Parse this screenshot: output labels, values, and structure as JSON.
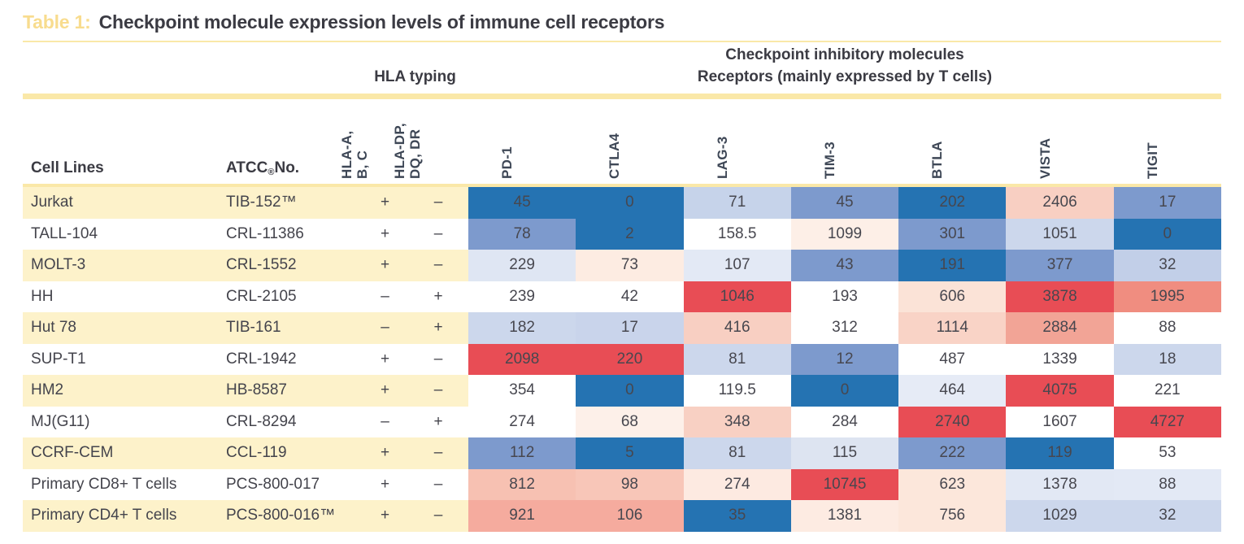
{
  "title": {
    "label": "Table 1:",
    "text": "Checkpoint molecule expression levels of immune cell receptors"
  },
  "group_headers": {
    "hla": "HLA typing",
    "checkpoint_line1": "Checkpoint inhibitory molecules",
    "checkpoint_line2": "Receptors (mainly expressed by T cells)"
  },
  "columns": {
    "cell_lines": "Cell Lines",
    "atcc_pre": "ATCC",
    "atcc_sup": "®",
    "atcc_post": " No.",
    "hla_abc_lines": [
      "HLA-A,",
      "B, C"
    ],
    "hla_dpdqdr_lines": [
      "HLA-DP,",
      "DQ, DR"
    ],
    "receptors": [
      "PD-1",
      "CTLA4",
      "LAG-3",
      "TIM-3",
      "BTLA",
      "VISTA",
      "TIGIT"
    ]
  },
  "palette": {
    "accent_yellow": "#fae8a8",
    "stripe_cream": "#fdf2ca",
    "title_label_yellow": "#f8dc8e",
    "heat_blue_dark": "#2573b2",
    "heat_blue_mid": "#7d9acd",
    "heat_blue_light": "#ccd7ec",
    "heat_red": "#e84d55",
    "heat_salmon": "#f5ab9e",
    "heat_pink": "#f8d0c3"
  },
  "rows": [
    {
      "cell_line": "Jurkat",
      "atcc": "TIB-152™",
      "hla_abc": "+",
      "hla_dpdqdr": "–",
      "row_tint": "cream",
      "values": [
        "45",
        "0",
        "71",
        "45",
        "202",
        "2406",
        "17"
      ],
      "cell_colors": [
        "#2573b2",
        "#2573b2",
        "#c6d3ea",
        "#7d9acd",
        "#2573b2",
        "#f8cfc2",
        "#7d9acd"
      ]
    },
    {
      "cell_line": "TALL-104",
      "atcc": "CRL-11386",
      "hla_abc": "+",
      "hla_dpdqdr": "–",
      "row_tint": "white",
      "values": [
        "78",
        "2",
        "158.5",
        "1099",
        "301",
        "1051",
        "0"
      ],
      "cell_colors": [
        "#7d9acd",
        "#2573b2",
        "#ffffff",
        "#fdefe7",
        "#7d9acd",
        "#ccd7ec",
        "#2573b2"
      ]
    },
    {
      "cell_line": "MOLT-3",
      "atcc": "CRL-1552",
      "hla_abc": "+",
      "hla_dpdqdr": "–",
      "row_tint": "cream",
      "values": [
        "229",
        "73",
        "107",
        "43",
        "191",
        "377",
        "32"
      ],
      "cell_colors": [
        "#dfe6f3",
        "#fdece2",
        "#e3e9f5",
        "#7d9acd",
        "#2573b2",
        "#7d9acd",
        "#c2cfe8"
      ]
    },
    {
      "cell_line": "HH",
      "atcc": "CRL-2105",
      "hla_abc": "–",
      "hla_dpdqdr": "+",
      "row_tint": "white",
      "values": [
        "239",
        "42",
        "1046",
        "193",
        "606",
        "3878",
        "1995"
      ],
      "cell_colors": [
        "#ffffff",
        "#ffffff",
        "#e84d55",
        "#ffffff",
        "#fbe3d7",
        "#e84d55",
        "#f08d80"
      ]
    },
    {
      "cell_line": "Hut 78",
      "atcc": "TIB-161",
      "hla_abc": "–",
      "hla_dpdqdr": "+",
      "row_tint": "cream",
      "values": [
        "182",
        "17",
        "416",
        "312",
        "1114",
        "2884",
        "88"
      ],
      "cell_colors": [
        "#ccd7ec",
        "#c9d4eb",
        "#f8cfc2",
        "#ffffff",
        "#f9d3c6",
        "#f2a496",
        "#ffffff"
      ]
    },
    {
      "cell_line": "SUP-T1",
      "atcc": "CRL-1942",
      "hla_abc": "+",
      "hla_dpdqdr": "–",
      "row_tint": "white",
      "values": [
        "2098",
        "220",
        "81",
        "12",
        "487",
        "1339",
        "18"
      ],
      "cell_colors": [
        "#e84d55",
        "#e84d55",
        "#ccd7ec",
        "#7d9acd",
        "#ffffff",
        "#ffffff",
        "#ccd7ec"
      ]
    },
    {
      "cell_line": "HM2",
      "atcc": "HB-8587",
      "hla_abc": "+",
      "hla_dpdqdr": "–",
      "row_tint": "cream",
      "values": [
        "354",
        "0",
        "119.5",
        "0",
        "464",
        "4075",
        "221"
      ],
      "cell_colors": [
        "#ffffff",
        "#2573b2",
        "#ffffff",
        "#2573b2",
        "#e6ebf6",
        "#e84d55",
        "#ffffff"
      ]
    },
    {
      "cell_line": "MJ(G11)",
      "atcc": "CRL-8294",
      "hla_abc": "–",
      "hla_dpdqdr": "+",
      "row_tint": "white",
      "values": [
        "274",
        "68",
        "348",
        "284",
        "2740",
        "1607",
        "4727"
      ],
      "cell_colors": [
        "#ffffff",
        "#fdf0e9",
        "#f8d0c3",
        "#ffffff",
        "#e84d55",
        "#ffffff",
        "#e84d55"
      ]
    },
    {
      "cell_line": "CCRF-CEM",
      "atcc": "CCL-119",
      "hla_abc": "+",
      "hla_dpdqdr": "–",
      "row_tint": "cream",
      "values": [
        "112",
        "5",
        "81",
        "115",
        "222",
        "119",
        "53"
      ],
      "cell_colors": [
        "#7d9acd",
        "#2573b2",
        "#ccd7ec",
        "#dde4f1",
        "#7d9acd",
        "#2573b2",
        "#ffffff"
      ]
    },
    {
      "cell_line": "Primary CD8+ T cells",
      "atcc": "PCS-800-017",
      "hla_abc": "+",
      "hla_dpdqdr": "–",
      "row_tint": "white",
      "values": [
        "812",
        "98",
        "274",
        "10745",
        "623",
        "1378",
        "88"
      ],
      "cell_colors": [
        "#f7c1b2",
        "#f8c6b8",
        "#fdeae1",
        "#e84d55",
        "#fce7db",
        "#e2e8f4",
        "#e3e9f5"
      ]
    },
    {
      "cell_line": "Primary CD4+ T cells",
      "atcc": "PCS-800-016™",
      "hla_abc": "+",
      "hla_dpdqdr": "–",
      "row_tint": "cream",
      "values": [
        "921",
        "106",
        "35",
        "1381",
        "756",
        "1029",
        "32"
      ],
      "cell_colors": [
        "#f5ab9e",
        "#f5ab9e",
        "#2573b2",
        "#fdebe2",
        "#fce7db",
        "#ccd7ec",
        "#ccd7ec"
      ]
    }
  ]
}
